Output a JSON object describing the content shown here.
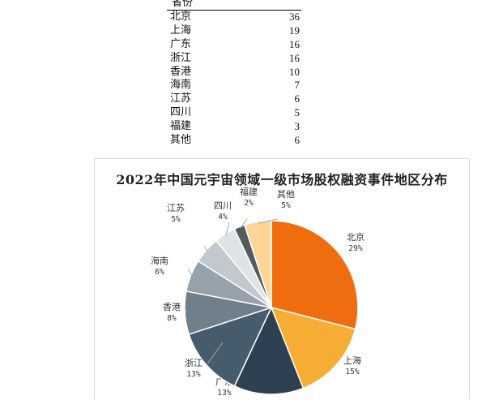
{
  "table": {
    "header": "省份",
    "rows": [
      {
        "region": "北京",
        "count": "36"
      },
      {
        "region": "上海",
        "count": "19"
      },
      {
        "region": "广东",
        "count": "16"
      },
      {
        "region": "浙江",
        "count": "16"
      },
      {
        "region": "香港",
        "count": "10"
      },
      {
        "region": "海南",
        "count": "7"
      },
      {
        "region": "江苏",
        "count": "6"
      },
      {
        "region": "四川",
        "count": "5"
      },
      {
        "region": "福建",
        "count": "3"
      },
      {
        "region": "其他",
        "count": "6"
      }
    ]
  },
  "chart_data": {
    "type": "pie",
    "title": "2022年中国元宇宙领域一级市场股权融资事件地区分布",
    "slices": [
      {
        "label": "北京",
        "value": 29,
        "pct_label": "29%",
        "color": "#f06d0f"
      },
      {
        "label": "上海",
        "value": 15,
        "pct_label": "15%",
        "color": "#f5ad33"
      },
      {
        "label": "广东",
        "value": 13,
        "pct_label": "13%",
        "color": "#2e4153"
      },
      {
        "label": "浙江",
        "value": 13,
        "pct_label": "13%",
        "color": "#465b6c"
      },
      {
        "label": "香港",
        "value": 8,
        "pct_label": "8%",
        "color": "#6f7f8b"
      },
      {
        "label": "海南",
        "value": 6,
        "pct_label": "6%",
        "color": "#95a2ac"
      },
      {
        "label": "江苏",
        "value": 5,
        "pct_label": "5%",
        "color": "#c1c9cf"
      },
      {
        "label": "四川",
        "value": 4,
        "pct_label": "4%",
        "color": "#dfe3e6"
      },
      {
        "label": "福建",
        "value": 2,
        "pct_label": "2%",
        "color": "#555a5f"
      },
      {
        "label": "其他",
        "value": 5,
        "pct_label": "5%",
        "color": "#fcd697"
      }
    ]
  }
}
